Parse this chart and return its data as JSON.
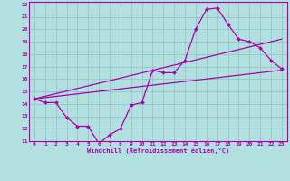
{
  "background_color": "#b2e0e0",
  "grid_color": "#90bfc0",
  "line_color": "#aa00aa",
  "xlim": [
    -0.5,
    23.5
  ],
  "ylim": [
    11,
    22.2
  ],
  "xticks": [
    0,
    1,
    2,
    3,
    4,
    5,
    6,
    7,
    8,
    9,
    10,
    11,
    12,
    13,
    14,
    15,
    16,
    17,
    18,
    19,
    20,
    21,
    22,
    23
  ],
  "yticks": [
    11,
    12,
    13,
    14,
    15,
    16,
    17,
    18,
    19,
    20,
    21,
    22
  ],
  "xlabel": "Windchill (Refroidissement éolien,°C)",
  "line1_x": [
    0,
    1,
    2,
    3,
    4,
    5,
    6,
    7,
    8,
    9,
    10,
    11,
    12,
    13,
    14,
    15,
    16,
    17,
    18,
    19,
    20,
    21,
    22,
    23
  ],
  "line1_y": [
    14.4,
    14.1,
    14.1,
    12.9,
    12.2,
    12.2,
    10.8,
    11.5,
    12.0,
    13.9,
    14.1,
    16.7,
    16.5,
    16.5,
    17.5,
    20.0,
    21.6,
    21.7,
    20.4,
    19.2,
    19.0,
    18.5,
    17.5,
    16.8
  ],
  "line2_x": [
    0,
    23
  ],
  "line2_y": [
    14.4,
    16.7
  ],
  "line3_x": [
    0,
    23
  ],
  "line3_y": [
    14.4,
    19.2
  ]
}
